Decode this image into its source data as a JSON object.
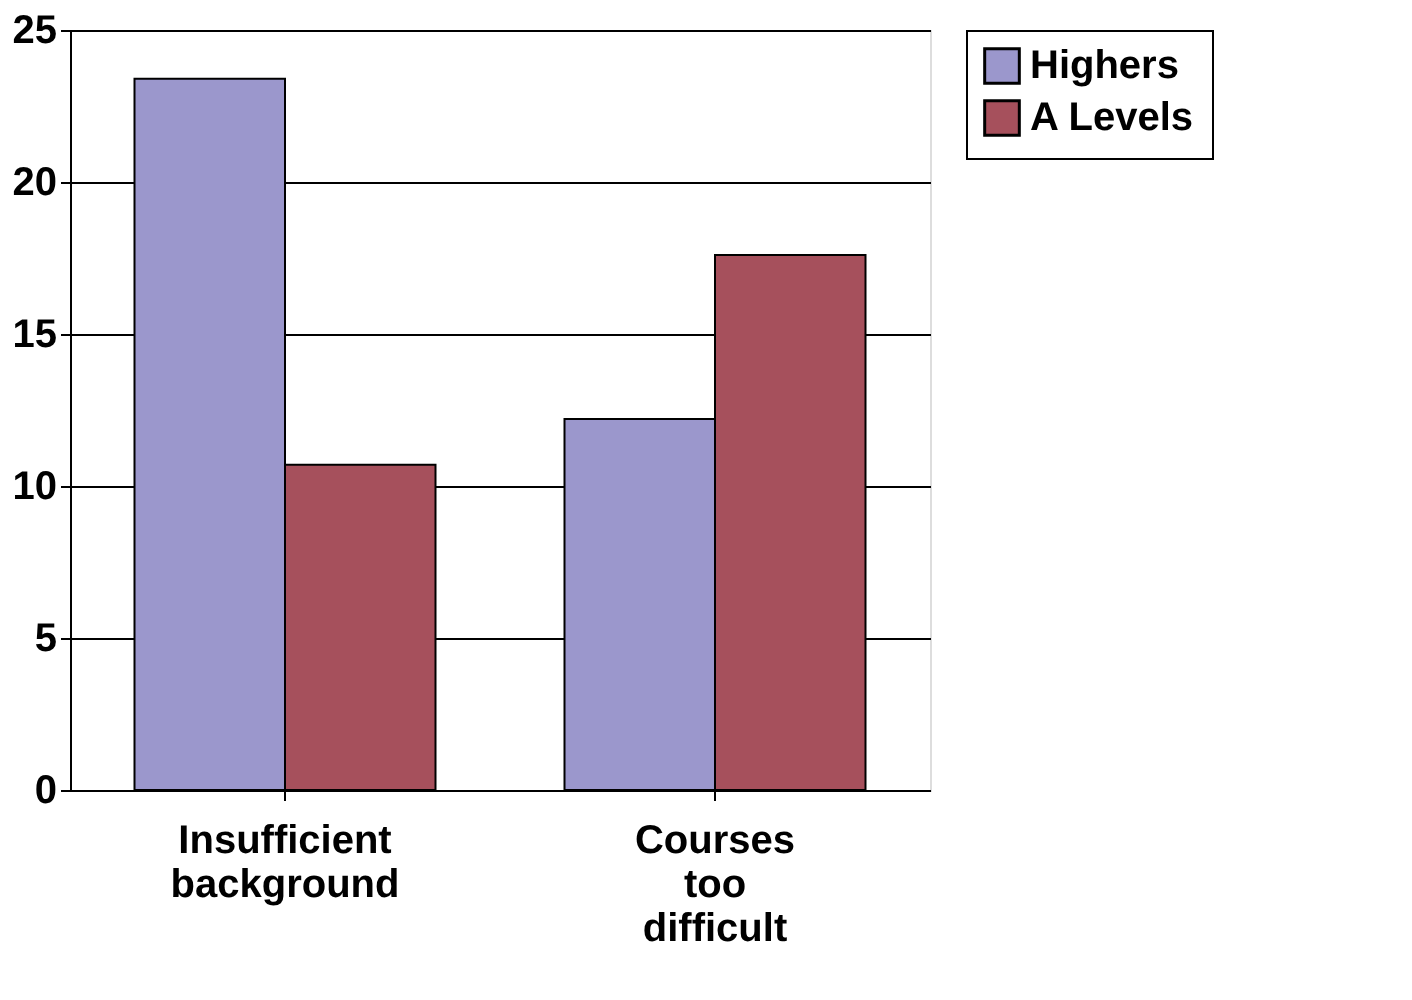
{
  "chart_data": {
    "type": "bar",
    "categories": [
      "Insufficient background",
      "Courses too difficult"
    ],
    "series": [
      {
        "name": "Highers",
        "color": "#9b97cc",
        "values": [
          23.4,
          12.2
        ]
      },
      {
        "name": "A Levels",
        "color": "#a6505c",
        "values": [
          10.7,
          17.6
        ]
      }
    ],
    "ylim": [
      0,
      25
    ],
    "yticks": [
      0,
      5,
      10,
      15,
      20,
      25
    ],
    "grid": "y",
    "legend": "right"
  }
}
